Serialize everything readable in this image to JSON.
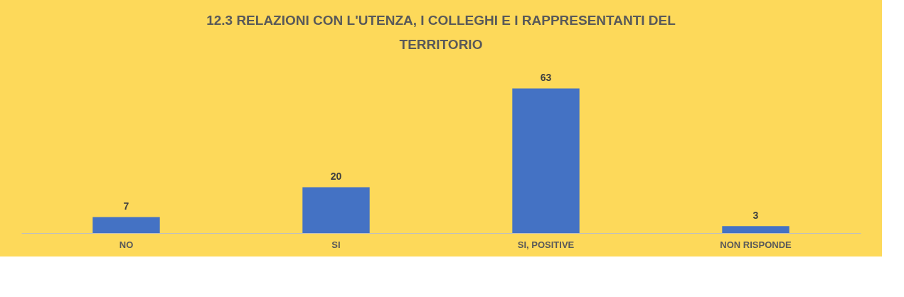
{
  "chart_data": {
    "type": "bar",
    "title": "12.3 RELAZIONI CON L'UTENZA, I COLLEGHI E I RAPPRESENTANTI DEL TERRITORIO",
    "categories": [
      "NO",
      "SI",
      "SI, POSITIVE",
      "NON RISPONDE"
    ],
    "values": [
      7,
      20,
      63,
      3
    ],
    "color": "#4472c4",
    "data_labels": true
  }
}
